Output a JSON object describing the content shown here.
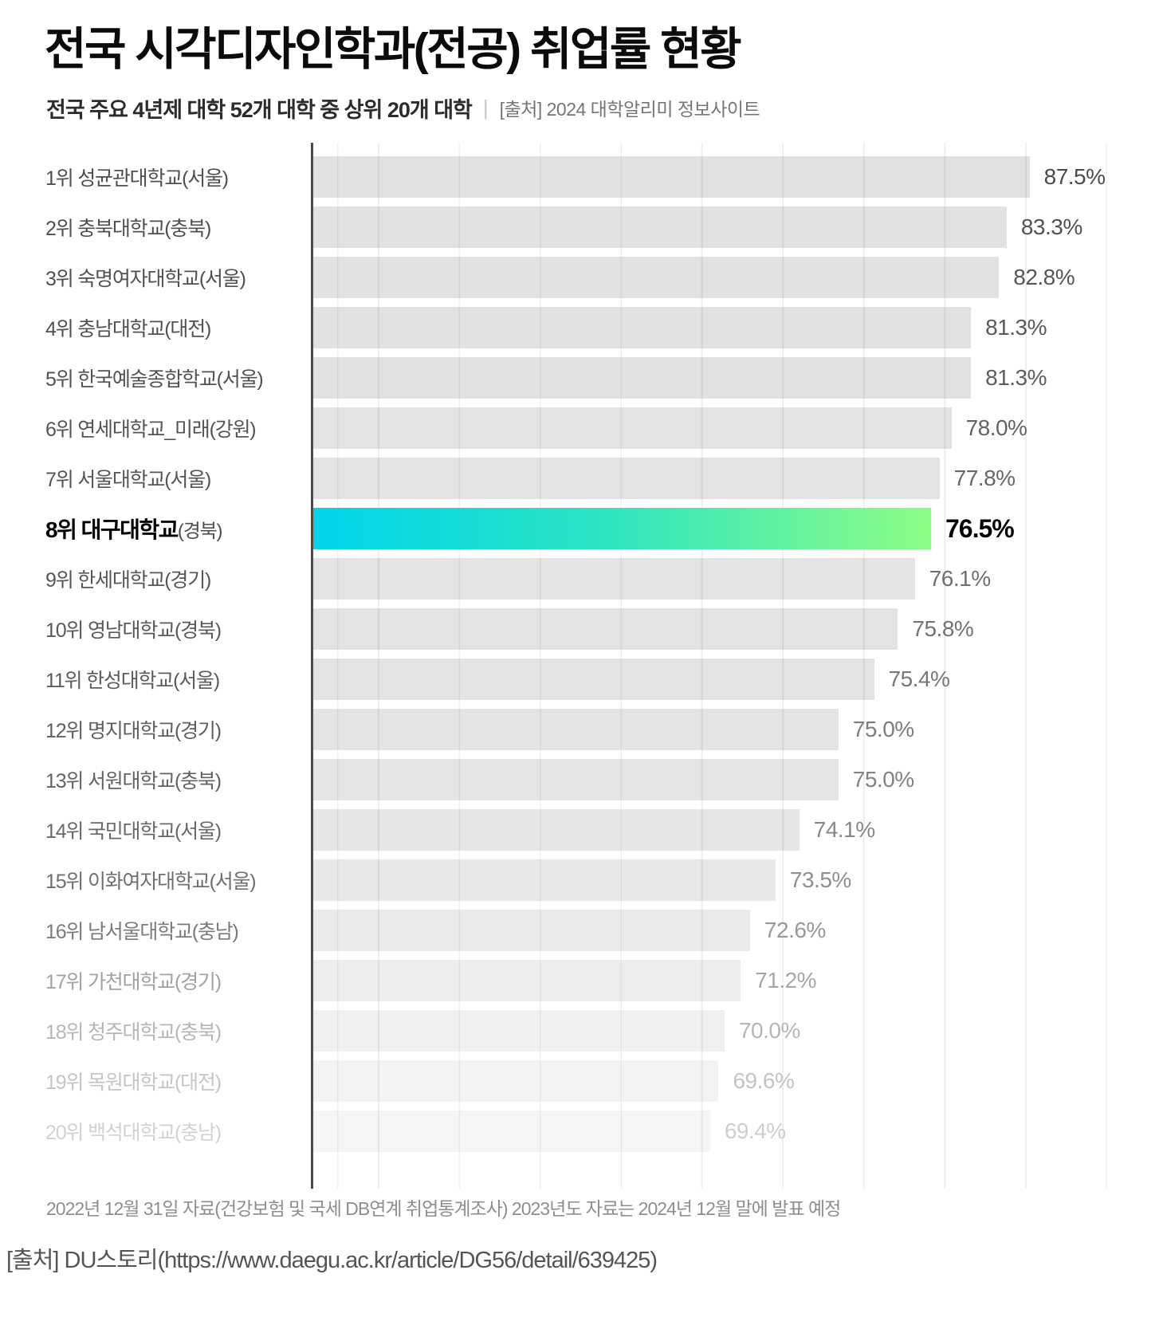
{
  "title": "전국 시각디자인학과(전공) 취업률 현황",
  "subtitle": {
    "main": "전국 주요 4년제 대학 52개 대학 중 상위 20개 대학",
    "separator": "|",
    "source": "[출처] 2024 대학알리미 정보사이트"
  },
  "footnote": "2022년 12월 31일 자료(건강보험 및 국세 DB연계 취업통계조사) 2023년도 자료는 2024년 12월 말에 발표 예정",
  "page_source": "[출처] DU스토리(https://www.daegu.ac.kr/article/DG56/detail/639425)",
  "colors": {
    "axis": "#4a4a4a",
    "gridline": "#ececec",
    "highlight_gradient_start": "#00d4ec",
    "highlight_gradient_mid": "#2ae3c3",
    "highlight_gradient_end": "#8dfe83",
    "highlight_region_text": "#4f4f4f"
  },
  "chart_data": {
    "type": "bar",
    "orientation": "horizontal",
    "title": "전국 시각디자인학과(전공) 취업률 현황",
    "value_suffix": "%",
    "grid": true,
    "highlight_index": 7,
    "categories": [
      "1위 성균관대학교(서울)",
      "2위 충북대학교(충북)",
      "3위 숙명여자대학교(서울)",
      "4위 충남대학교(대전)",
      "5위 한국예술종합학교(서울)",
      "6위 연세대학교_미래(강원)",
      "7위 서울대학교(서울)",
      "8위 대구대학교(경북)",
      "9위 한세대학교(경기)",
      "10위 영남대학교(경북)",
      "11위 한성대학교(서울)",
      "12위 명지대학교(경기)",
      "13위 서원대학교(충북)",
      "14위 국민대학교(서울)",
      "15위 이화여자대학교(서울)",
      "16위 남서울대학교(충남)",
      "17위 가천대학교(경기)",
      "18위 청주대학교(충북)",
      "19위 목원대학교(대전)",
      "20위 백석대학교(충남)"
    ],
    "values": [
      87.5,
      83.3,
      82.8,
      81.3,
      81.3,
      78.0,
      77.8,
      76.5,
      76.1,
      75.8,
      75.4,
      75.0,
      75.0,
      74.1,
      73.5,
      72.6,
      71.2,
      70.0,
      69.6,
      69.4
    ],
    "items": [
      {
        "label_main": "1위 성균관대학교",
        "label_region": "(서울)",
        "value": 87.5,
        "value_label": "87.5%",
        "bar_width_pct": 84.3,
        "highlight": false,
        "bar_color": "#e2e2e2",
        "label_color": "#4f4f4f",
        "value_color": "#4c4c4c"
      },
      {
        "label_main": "2위 충북대학교",
        "label_region": "(충북)",
        "value": 83.3,
        "value_label": "83.3%",
        "bar_width_pct": 81.6,
        "highlight": false,
        "bar_color": "#e2e2e2",
        "label_color": "#4f4f4f",
        "value_color": "#525252"
      },
      {
        "label_main": "3위 숙명여자대학교",
        "label_region": "(서울)",
        "value": 82.8,
        "value_label": "82.8%",
        "bar_width_pct": 80.7,
        "highlight": false,
        "bar_color": "#e2e2e2",
        "label_color": "#505050",
        "value_color": "#565656"
      },
      {
        "label_main": "4위 충남대학교",
        "label_region": "(대전)",
        "value": 81.3,
        "value_label": "81.3%",
        "bar_width_pct": 77.4,
        "highlight": false,
        "bar_color": "#e2e2e2",
        "label_color": "#515151",
        "value_color": "#5a5a5a"
      },
      {
        "label_main": "5위 한국예술종합학교",
        "label_region": "(서울)",
        "value": 81.3,
        "value_label": "81.3%",
        "bar_width_pct": 77.4,
        "highlight": false,
        "bar_color": "#e2e2e2",
        "label_color": "#525252",
        "value_color": "#5e5e5e"
      },
      {
        "label_main": "6위 연세대학교_미래",
        "label_region": "(강원)",
        "value": 78.0,
        "value_label": "78.0%",
        "bar_width_pct": 75.1,
        "highlight": false,
        "bar_color": "#e3e3e3",
        "label_color": "#545454",
        "value_color": "#636363"
      },
      {
        "label_main": "7위 서울대학교",
        "label_region": "(서울)",
        "value": 77.8,
        "value_label": "77.8%",
        "bar_width_pct": 73.7,
        "highlight": false,
        "bar_color": "#e3e3e3",
        "label_color": "#555555",
        "value_color": "#676767"
      },
      {
        "label_main": "8위 대구대학교",
        "label_region": "(경북)",
        "value": 76.5,
        "value_label": "76.5%",
        "bar_width_pct": 72.7,
        "highlight": true,
        "bar_color": "",
        "label_color": "#000000",
        "value_color": "#050505"
      },
      {
        "label_main": "9위 한세대학교",
        "label_region": "(경기)",
        "value": 76.1,
        "value_label": "76.1%",
        "bar_width_pct": 70.8,
        "highlight": false,
        "bar_color": "#e3e3e3",
        "label_color": "#575757",
        "value_color": "#6f6f6f"
      },
      {
        "label_main": "10위 영남대학교",
        "label_region": "(경북)",
        "value": 75.8,
        "value_label": "75.8%",
        "bar_width_pct": 68.8,
        "highlight": false,
        "bar_color": "#e3e3e3",
        "label_color": "#595959",
        "value_color": "#737373"
      },
      {
        "label_main": "11위 한성대학교",
        "label_region": "(서울)",
        "value": 75.4,
        "value_label": "75.4%",
        "bar_width_pct": 66.0,
        "highlight": false,
        "bar_color": "#e4e4e4",
        "label_color": "#5c5c5c",
        "value_color": "#787878"
      },
      {
        "label_main": "12위 명지대학교",
        "label_region": "(경기)",
        "value": 75.0,
        "value_label": "75.0%",
        "bar_width_pct": 61.8,
        "highlight": false,
        "bar_color": "#e4e4e4",
        "label_color": "#5f5f5f",
        "value_color": "#7d7d7d"
      },
      {
        "label_main": "13위 서원대학교",
        "label_region": "(충북)",
        "value": 75.0,
        "value_label": "75.0%",
        "bar_width_pct": 61.8,
        "highlight": false,
        "bar_color": "#e5e5e5",
        "label_color": "#636363",
        "value_color": "#828282"
      },
      {
        "label_main": "14위 국민대학교",
        "label_region": "(서울)",
        "value": 74.1,
        "value_label": "74.1%",
        "bar_width_pct": 57.2,
        "highlight": false,
        "bar_color": "#e6e6e6",
        "label_color": "#696969",
        "value_color": "#888888"
      },
      {
        "label_main": "15위 이화여자대학교",
        "label_region": "(서울)",
        "value": 73.5,
        "value_label": "73.5%",
        "bar_width_pct": 54.4,
        "highlight": false,
        "bar_color": "#e8e8e8",
        "label_color": "#6f6f6f",
        "value_color": "#8f8f8f"
      },
      {
        "label_main": "16위 남서울대학교",
        "label_region": "(충남)",
        "value": 72.6,
        "value_label": "72.6%",
        "bar_width_pct": 51.4,
        "highlight": false,
        "bar_color": "#eaeaea",
        "label_color": "#7b7b7b",
        "value_color": "#989898"
      },
      {
        "label_main": "17위 가천대학교",
        "label_region": "(경기)",
        "value": 71.2,
        "value_label": "71.2%",
        "bar_width_pct": 50.3,
        "highlight": false,
        "bar_color": "#ededed",
        "label_color": "#a2a2a2",
        "value_color": "#a6a6a6"
      },
      {
        "label_main": "18위 청주대학교",
        "label_region": "(충북)",
        "value": 70.0,
        "value_label": "70.0%",
        "bar_width_pct": 48.4,
        "highlight": false,
        "bar_color": "#f0f0f0",
        "label_color": "#b6b6b6",
        "value_color": "#b6b6b6"
      },
      {
        "label_main": "19위 목원대학교",
        "label_region": "(대전)",
        "value": 69.6,
        "value_label": "69.6%",
        "bar_width_pct": 47.7,
        "highlight": false,
        "bar_color": "#f3f3f3",
        "label_color": "#c5c5c5",
        "value_color": "#c4c4c4"
      },
      {
        "label_main": "20위 백석대학교",
        "label_region": "(충남)",
        "value": 69.4,
        "value_label": "69.4%",
        "bar_width_pct": 46.7,
        "highlight": false,
        "bar_color": "#f5f5f5",
        "label_color": "#d2d2d2",
        "value_color": "#cecece"
      }
    ]
  }
}
